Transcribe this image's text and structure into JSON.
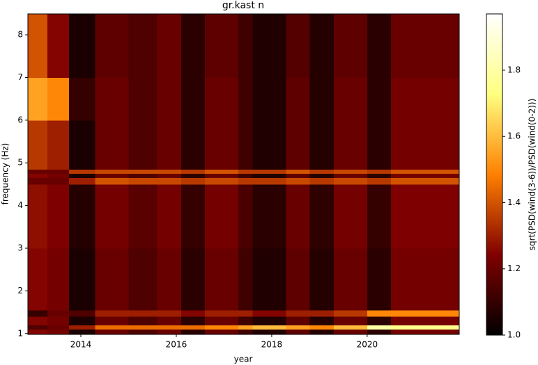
{
  "chart_data": {
    "type": "heatmap",
    "title": "gr.kast n",
    "x_label": "year",
    "y_label": "frequency (Hz)",
    "colorbar_label": "sqrt(PSD(wind(3-6))/PSD(wind(0-2)))",
    "colormap": "afmhot",
    "x_edges": [
      2012.89,
      2013.3,
      2013.75,
      2014.3,
      2015,
      2015.6,
      2016.1,
      2016.6,
      2017.3,
      2017.6,
      2018.3,
      2018.8,
      2019.3,
      2020,
      2020.5,
      2021.93
    ],
    "y_edges": [
      0.98,
      1.1,
      1.2,
      1.4,
      1.55,
      2,
      3,
      4.5,
      4.65,
      4.75,
      4.85,
      6,
      7,
      8.49
    ],
    "z": [
      [
        1.25,
        1.22,
        1.05,
        1.2,
        1.15,
        1.2,
        1.08,
        1.2,
        1.12,
        1.06,
        1.18,
        1.07,
        1.2,
        1.08,
        1.22
      ],
      [
        1.15,
        1.2,
        1.3,
        1.45,
        1.45,
        1.45,
        1.45,
        1.5,
        1.55,
        1.6,
        1.55,
        1.5,
        1.6,
        1.8,
        1.75
      ],
      [
        1.25,
        1.22,
        1.05,
        1.2,
        1.15,
        1.2,
        1.08,
        1.2,
        1.12,
        1.06,
        1.18,
        1.07,
        1.2,
        1.08,
        1.22
      ],
      [
        1.1,
        1.2,
        1.15,
        1.3,
        1.3,
        1.3,
        1.25,
        1.3,
        1.3,
        1.25,
        1.3,
        1.3,
        1.35,
        1.5,
        1.5
      ],
      [
        1.25,
        1.22,
        1.05,
        1.2,
        1.15,
        1.2,
        1.08,
        1.2,
        1.12,
        1.06,
        1.18,
        1.07,
        1.2,
        1.08,
        1.22
      ],
      [
        1.25,
        1.22,
        1.05,
        1.2,
        1.15,
        1.2,
        1.08,
        1.2,
        1.12,
        1.06,
        1.18,
        1.07,
        1.2,
        1.08,
        1.22
      ],
      [
        1.27,
        1.24,
        1.07,
        1.22,
        1.17,
        1.22,
        1.1,
        1.22,
        1.14,
        1.08,
        1.2,
        1.09,
        1.22,
        1.1,
        1.24
      ],
      [
        1.2,
        1.2,
        1.3,
        1.4,
        1.38,
        1.38,
        1.35,
        1.38,
        1.35,
        1.35,
        1.38,
        1.35,
        1.38,
        1.35,
        1.4
      ],
      [
        1.25,
        1.22,
        1.05,
        1.2,
        1.15,
        1.2,
        1.08,
        1.2,
        1.12,
        1.06,
        1.18,
        1.07,
        1.2,
        1.08,
        1.22
      ],
      [
        1.2,
        1.2,
        1.35,
        1.38,
        1.38,
        1.38,
        1.35,
        1.4,
        1.35,
        1.35,
        1.4,
        1.35,
        1.38,
        1.35,
        1.4
      ],
      [
        1.35,
        1.3,
        1.05,
        1.2,
        1.15,
        1.2,
        1.08,
        1.2,
        1.12,
        1.06,
        1.18,
        1.07,
        1.2,
        1.08,
        1.22
      ],
      [
        1.55,
        1.5,
        1.1,
        1.2,
        1.15,
        1.2,
        1.08,
        1.2,
        1.12,
        1.06,
        1.18,
        1.07,
        1.2,
        1.08,
        1.22
      ],
      [
        1.4,
        1.25,
        1.05,
        1.18,
        1.15,
        1.2,
        1.08,
        1.18,
        1.12,
        1.06,
        1.16,
        1.07,
        1.18,
        1.08,
        1.2
      ]
    ],
    "xlim": [
      2012.89,
      2021.93
    ],
    "ylim": [
      0.98,
      8.49
    ],
    "xticks": [
      2014,
      2016,
      2018,
      2020
    ],
    "yticks": [
      1,
      2,
      3,
      4,
      5,
      6,
      7,
      8
    ],
    "clim": [
      1.0,
      1.97
    ],
    "cticks": [
      {
        "value": 1,
        "label": "1.0"
      },
      1.2,
      1.4,
      1.6,
      1.8
    ]
  }
}
